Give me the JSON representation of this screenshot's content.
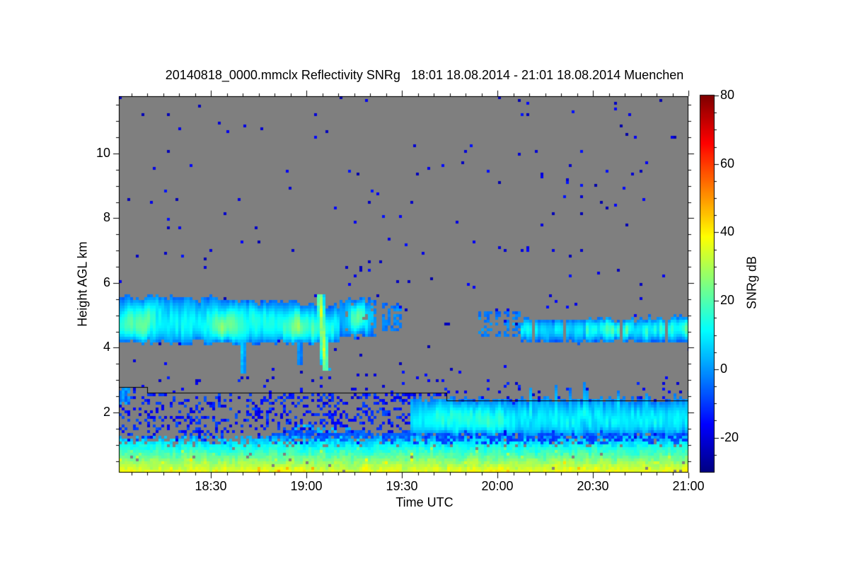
{
  "figure": {
    "background": "#ffffff",
    "plot_frame_color": "#000000"
  },
  "chart_data": {
    "type": "heatmap",
    "title": "20140818_0000.mmclx Reflectivity SNRg   18:01 18.08.2014 - 21:01 18.08.2014 Muenchen",
    "xlabel": "Time UTC",
    "ylabel": "Height AGL km",
    "no_signal_color": "#7f7f7f",
    "x_axis": {
      "label": "Time UTC",
      "start_label": "18:01",
      "end_label": "21:00",
      "start_min": 1,
      "end_min": 180,
      "major_ticks": [
        {
          "min": 30,
          "label": "18:30"
        },
        {
          "min": 60,
          "label": "19:00"
        },
        {
          "min": 90,
          "label": "19:30"
        },
        {
          "min": 120,
          "label": "20:00"
        },
        {
          "min": 150,
          "label": "20:30"
        },
        {
          "min": 180,
          "label": "21:00"
        }
      ],
      "minor_step_min": 5
    },
    "y_axis": {
      "label": "Height AGL km",
      "min_km": 0.14,
      "max_km": 11.77,
      "major_ticks": [
        2,
        4,
        6,
        8,
        10
      ],
      "minor_step_km": 0.5
    },
    "colorbar": {
      "label": "SNRg dB",
      "min_db": -30,
      "max_db": 80,
      "major_ticks": [
        80,
        60,
        40,
        20,
        0,
        -20
      ],
      "minor_step_db": 5,
      "colormap": "jet",
      "jet_stops": [
        [
          0.0,
          "#000083"
        ],
        [
          0.125,
          "#0000ff"
        ],
        [
          0.375,
          "#00ffff"
        ],
        [
          0.625,
          "#ffff00"
        ],
        [
          0.875,
          "#ff0000"
        ],
        [
          1.0,
          "#800000"
        ]
      ]
    },
    "features": {
      "boundary_layer": {
        "surface_snr_db": 40,
        "lapse_db_per_km": 32,
        "solid_top_km": 0.9,
        "ragged_top_km": 1.3
      },
      "speckle_noise": {
        "dense_below_overlay_line": {
          "bottom_km": 1.0,
          "density": 0.3,
          "snr_db": -14
        },
        "near_line": {
          "thickness_km": 0.55,
          "density": 0.05,
          "snr_db": -17
        },
        "sparse_everywhere": {
          "density": 0.009,
          "snr_db": -20
        }
      },
      "clouds": [
        {
          "id": "midlevel-band-A",
          "t0_min": 1,
          "t1_min": 70,
          "base_km": 4.16,
          "top_km": 5.62,
          "snr_fringe_db": -4,
          "snr_core_db": 15,
          "snr_patch_max_db": 28
        },
        {
          "id": "fall-streak-1",
          "tc_min": 39.8,
          "h_bottom_km": 3.2,
          "width_min": 0.9,
          "snr_db": 8
        },
        {
          "id": "fall-streak-2",
          "tc_min": 57.8,
          "h_bottom_km": 3.5,
          "width_min": 0.7,
          "snr_db": 5
        },
        {
          "id": "bright-fall-streak",
          "tc_top_min": 64.2,
          "h_top_km": 5.6,
          "h_bottom_km": 3.3,
          "slope_min_per_km": 0.78,
          "snr_max_db": 36
        },
        {
          "id": "patch-1",
          "t0_min": 70.5,
          "t1_min": 82,
          "base_km": 4.35,
          "top_km": 5.5,
          "snr_core_db": 22
        },
        {
          "id": "patch-2",
          "t0_min": 83.5,
          "t1_min": 90,
          "base_km": 4.5,
          "top_km": 5.35,
          "snr_core_db": 8
        },
        {
          "id": "patch-3",
          "t0_min": 114,
          "t1_min": 127,
          "base_km": 4.3,
          "top_km": 5.15,
          "snr_core_db": 7
        },
        {
          "id": "midlevel-band-B",
          "t0_min": 127,
          "t1_min": 180,
          "base_km": 4.18,
          "top_km": 4.88,
          "snr_core_db": 14,
          "rise_after_min": 166
        },
        {
          "id": "low-cloud-deck",
          "t0_min": 92.5,
          "t1_min": 180,
          "base_km": 1.32,
          "top_km": 2.4,
          "snr_core_db": 13,
          "spiky_after_min": 125,
          "spike_top_km": 2.95
        },
        {
          "id": "dark-blue-subcloud-layer",
          "t0_min": 92.5,
          "t1_min": 180,
          "base_km": 0.98,
          "snr_db": -9
        },
        {
          "id": "dark-blue-wavy-layer",
          "t0_min": 47,
          "t1_min": 93,
          "center_km": 1.25,
          "half_width_km": 0.16,
          "snr_db": -7
        },
        {
          "id": "left-edge-low-patch",
          "t0_min": 1,
          "t1_min": 4.5,
          "base_km": 2.25,
          "top_km": 2.75,
          "snr_db": -2
        }
      ],
      "overlay_line_segments": [
        {
          "t0_min": 1,
          "t1_min": 10,
          "h_km": 2.78
        },
        {
          "t0_min": 10,
          "t1_min": 104,
          "h_km": 2.62
        },
        {
          "t0_min": 104,
          "t1_min": 180,
          "h_km": 2.37
        }
      ]
    }
  }
}
